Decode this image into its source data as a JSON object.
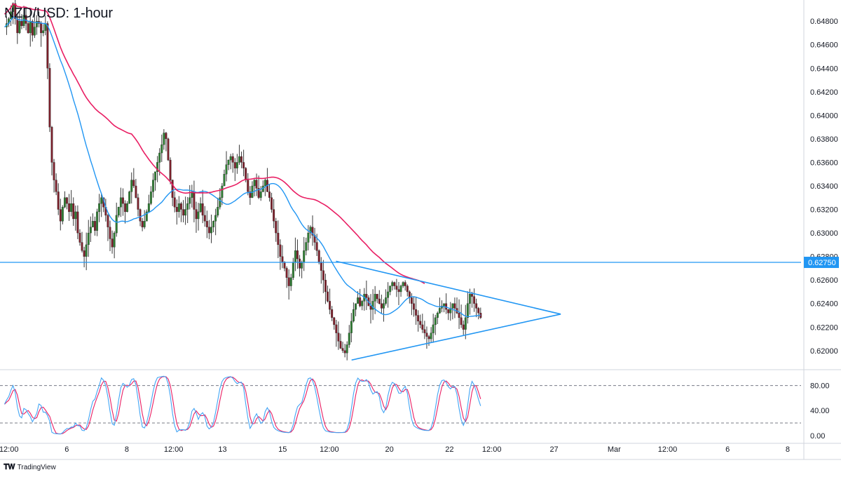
{
  "header": {
    "title": "NZD/USD: 1-hour"
  },
  "footer": {
    "brand": "TradingView",
    "logo_icon": "tradingview-logo-icon"
  },
  "colors": {
    "up": "#26a69a",
    "down": "#ef5350",
    "candle_body_up": "#2e7d32",
    "candle_body_down": "#7b1f2a",
    "ma_fast": "#2196f3",
    "ma_slow": "#e91e63",
    "support": "#2196f3",
    "triangle": "#2196f3",
    "stoch_k": "#42a5f5",
    "stoch_d": "#e91e63",
    "grid": "#e0e3eb"
  },
  "chart_data": [
    {
      "type": "candlestick",
      "title": "NZD/USD: 1-hour",
      "y_ticks": [
        "0.64800",
        "0.64600",
        "0.64400",
        "0.64200",
        "0.64000",
        "0.63800",
        "0.63600",
        "0.63400",
        "0.63200",
        "0.63000",
        "0.62800",
        "0.62600",
        "0.62400",
        "0.62200",
        "0.62000"
      ],
      "y_tick_values": [
        0.648,
        0.646,
        0.644,
        0.642,
        0.64,
        0.638,
        0.636,
        0.634,
        0.632,
        0.63,
        0.628,
        0.626,
        0.624,
        0.622,
        0.62
      ],
      "ylim": [
        0.6185,
        0.6495
      ],
      "x_ticks": [
        "12:00",
        "6",
        "8",
        "12:00",
        "13",
        "15",
        "12:00",
        "20",
        "22",
        "12:00",
        "27",
        "Mar",
        "12:00",
        "6",
        "8"
      ],
      "x_tick_index": [
        4,
        30,
        57,
        78,
        100,
        127,
        148,
        175,
        202,
        221,
        249,
        276,
        300,
        327,
        354
      ],
      "x_index_range": [
        0,
        360
      ],
      "horizontal_line": {
        "value": 0.6275,
        "label": "0.62750"
      },
      "triangle": {
        "upper_start": [
          151,
          0.6276
        ],
        "lower_start": [
          158,
          0.6192
        ],
        "apex": [
          252,
          0.6231
        ]
      },
      "ohlc_close": [
        0.6475,
        0.6478,
        0.6482,
        0.6488,
        0.6495,
        0.6482,
        0.647,
        0.648,
        0.6476,
        0.6485,
        0.6478,
        0.647,
        0.648,
        0.6468,
        0.6475,
        0.648,
        0.6478,
        0.647,
        0.6472,
        0.6478,
        0.644,
        0.639,
        0.636,
        0.6345,
        0.6335,
        0.632,
        0.631,
        0.6322,
        0.633,
        0.6325,
        0.6318,
        0.6325,
        0.6312,
        0.6318,
        0.63,
        0.6292,
        0.6285,
        0.628,
        0.629,
        0.63,
        0.6305,
        0.631,
        0.6302,
        0.6318,
        0.6325,
        0.633,
        0.6322,
        0.6315,
        0.6305,
        0.6295,
        0.6288,
        0.63,
        0.6315,
        0.6322,
        0.633,
        0.6325,
        0.6318,
        0.6325,
        0.6335,
        0.6345,
        0.634,
        0.633,
        0.632,
        0.631,
        0.6305,
        0.631,
        0.6318,
        0.6325,
        0.6335,
        0.6345,
        0.6352,
        0.636,
        0.6368,
        0.6375,
        0.6385,
        0.638,
        0.6362,
        0.6345,
        0.633,
        0.6322,
        0.6318,
        0.6325,
        0.632,
        0.6315,
        0.632,
        0.6325,
        0.633,
        0.6335,
        0.632,
        0.6312,
        0.6318,
        0.6325,
        0.6315,
        0.631,
        0.6305,
        0.63,
        0.6305,
        0.631,
        0.6315,
        0.6322,
        0.633,
        0.634,
        0.635,
        0.6358,
        0.6362,
        0.6365,
        0.636,
        0.6355,
        0.636,
        0.6365,
        0.636,
        0.6355,
        0.6345,
        0.6335,
        0.633,
        0.634,
        0.6345,
        0.6338,
        0.633,
        0.6335,
        0.634,
        0.6345,
        0.6335,
        0.633,
        0.632,
        0.631,
        0.63,
        0.629,
        0.628,
        0.6275,
        0.627,
        0.6262,
        0.6255,
        0.6262,
        0.6275,
        0.6285,
        0.6278,
        0.627,
        0.6275,
        0.6285,
        0.6292,
        0.63,
        0.6305,
        0.6298,
        0.6292,
        0.6285,
        0.6275,
        0.6268,
        0.626,
        0.625,
        0.6242,
        0.6235,
        0.6228,
        0.6222,
        0.6215,
        0.6208,
        0.6202,
        0.62,
        0.6198,
        0.6205,
        0.6215,
        0.6225,
        0.6235,
        0.624,
        0.6245,
        0.6238,
        0.6242,
        0.6248,
        0.6245,
        0.6238,
        0.6235,
        0.6242,
        0.6248,
        0.6244,
        0.624,
        0.6236,
        0.624,
        0.6245,
        0.625,
        0.6255,
        0.6258,
        0.6255,
        0.6252,
        0.625,
        0.6255,
        0.6258,
        0.6255,
        0.625,
        0.6245,
        0.624,
        0.6235,
        0.623,
        0.6225,
        0.6222,
        0.6218,
        0.6215,
        0.6212,
        0.621,
        0.6215,
        0.6222,
        0.6228,
        0.6232,
        0.6236,
        0.6238,
        0.624,
        0.6235,
        0.6232,
        0.6236,
        0.624,
        0.6236,
        0.6232,
        0.6228,
        0.6222,
        0.6218,
        0.6228,
        0.624,
        0.6248,
        0.6246,
        0.624,
        0.6236,
        0.6232,
        0.6228
      ]
    },
    {
      "type": "line",
      "name_hidden": true,
      "y_ticks": [
        "80.00",
        "40.00",
        "0.00"
      ],
      "y_tick_values": [
        80,
        40,
        0
      ],
      "ylim": [
        -8,
        102
      ],
      "dashed_levels": [
        80,
        20
      ]
    }
  ]
}
